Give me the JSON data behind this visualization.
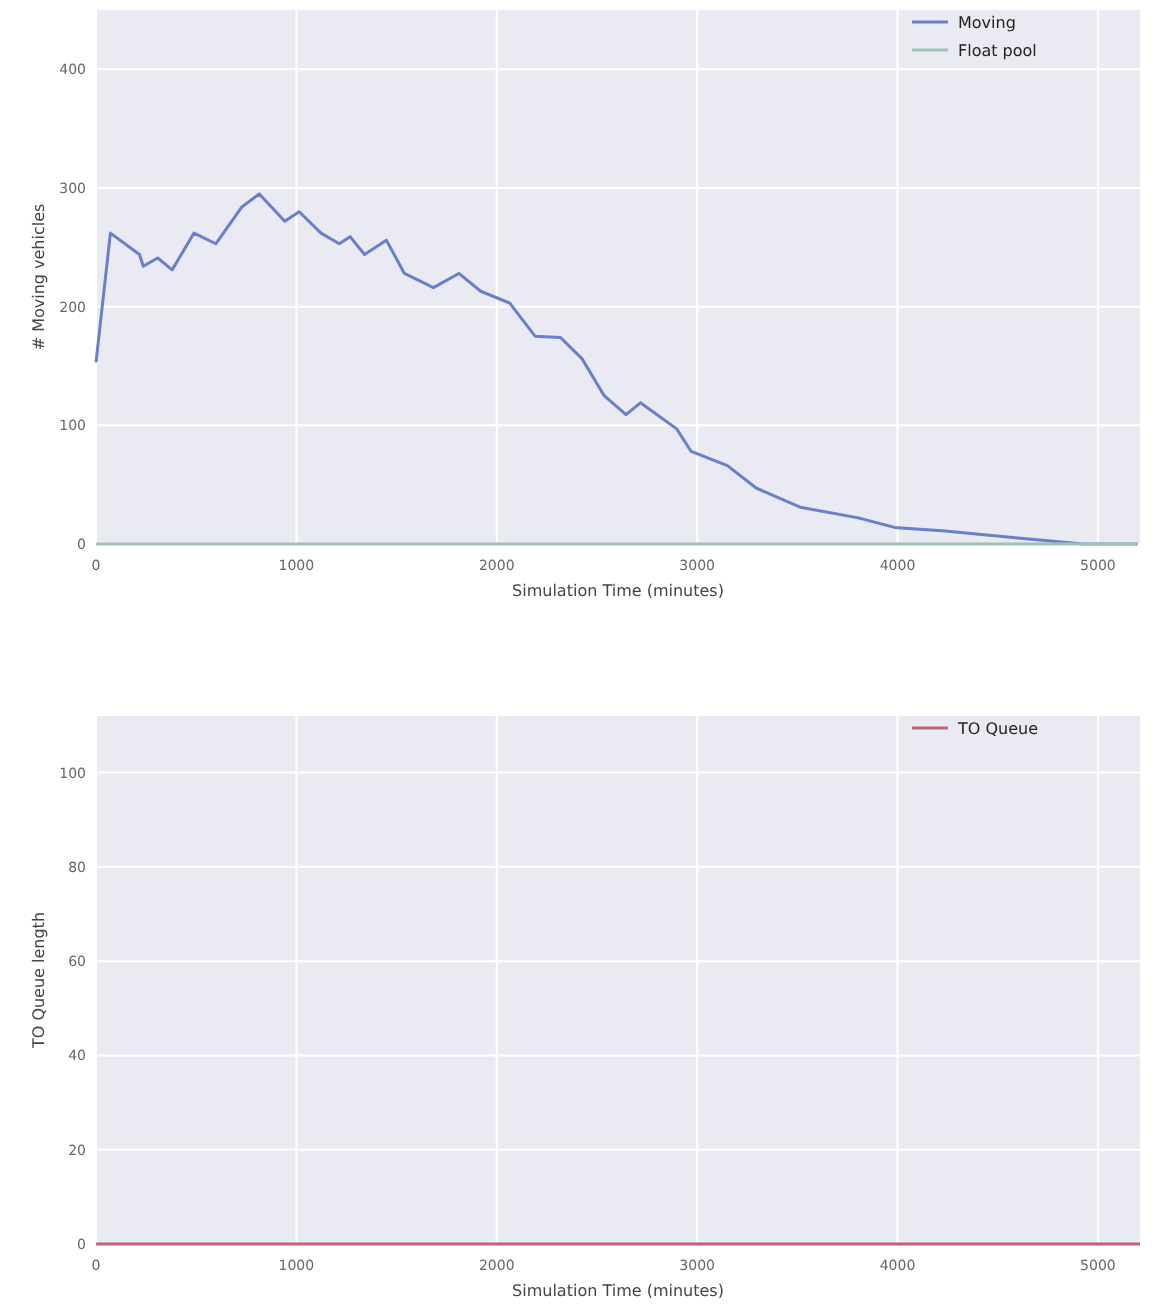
{
  "chart_data": [
    {
      "type": "line",
      "ylabel": "# Moving vehicles",
      "xlabel": "Simulation Time (minutes)",
      "xlim": [
        0,
        5210
      ],
      "ylim": [
        0,
        450
      ],
      "xticks": [
        0,
        1000,
        2000,
        3000,
        4000,
        5000
      ],
      "yticks": [
        0,
        100,
        200,
        300,
        400
      ],
      "grid": true,
      "legend": "top right",
      "series": [
        {
          "name": "Moving",
          "color": "#6a7fc8",
          "x": [
            0,
            72,
            217,
            236,
            308,
            380,
            489,
            598,
            728,
            815,
            942,
            1014,
            1123,
            1214,
            1268,
            1340,
            1449,
            1539,
            1684,
            1811,
            1920,
            2065,
            2192,
            2318,
            2426,
            2536,
            2645,
            2717,
            2898,
            2970,
            3151,
            3296,
            3514,
            3804,
            3985,
            4238,
            4601,
            4926,
            5200
          ],
          "values": [
            153,
            262,
            244,
            234,
            241,
            231,
            262,
            253,
            284,
            295,
            272,
            280,
            262,
            253,
            259,
            244,
            256,
            228,
            216,
            228,
            213,
            203,
            175,
            174,
            156,
            125,
            109,
            119,
            97,
            78,
            66,
            47,
            31,
            22,
            14,
            11,
            5,
            0,
            0
          ]
        },
        {
          "name": "Float pool",
          "color": "#9fc2b8",
          "x": [
            0,
            5200
          ],
          "values": [
            0,
            0
          ]
        }
      ]
    },
    {
      "type": "line",
      "ylabel": "TO Queue length",
      "xlabel": "Simulation Time (minutes)",
      "xlim": [
        0,
        5210
      ],
      "ylim": [
        0,
        112
      ],
      "xticks": [
        0,
        1000,
        2000,
        3000,
        4000,
        5000
      ],
      "yticks": [
        0,
        20,
        40,
        60,
        80,
        100
      ],
      "grid": true,
      "legend": "top right",
      "series": [
        {
          "name": "TO Queue",
          "color": "#c0607a",
          "x": [
            0,
            5210
          ],
          "values": [
            0,
            0
          ]
        }
      ]
    }
  ]
}
